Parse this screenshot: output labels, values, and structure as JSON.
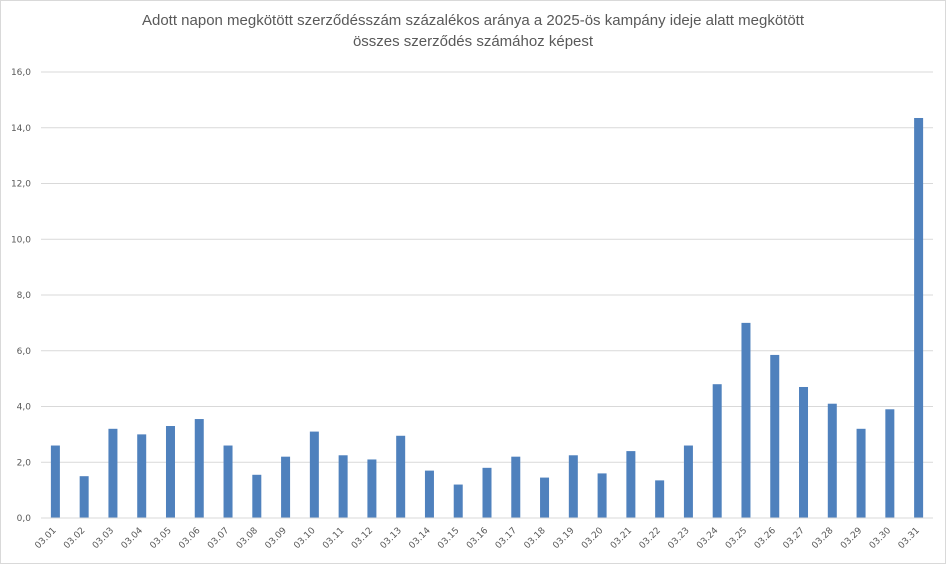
{
  "chart_data": {
    "type": "bar",
    "title_lines": [
      "Adott napon megkötött szerződésszám százalékos aránya a 2025-ös kampány ideje alatt megkötött",
      "összes szerződés számához képest"
    ],
    "xlabel": "",
    "ylabel": "",
    "categories": [
      "03.01",
      "03.02",
      "03.03",
      "03.04",
      "03.05",
      "03.06",
      "03.07",
      "03.08",
      "03.09",
      "03.10",
      "03.11",
      "03.12",
      "03.13",
      "03.14",
      "03.15",
      "03.16",
      "03.17",
      "03.18",
      "03.19",
      "03.20",
      "03.21",
      "03.22",
      "03.23",
      "03.24",
      "03.25",
      "03.26",
      "03.27",
      "03.28",
      "03.29",
      "03.30",
      "03.31"
    ],
    "values": [
      2.6,
      1.5,
      3.2,
      3.0,
      3.3,
      3.55,
      2.6,
      1.55,
      2.2,
      3.1,
      2.25,
      2.1,
      2.95,
      1.7,
      1.2,
      1.8,
      2.2,
      1.45,
      2.25,
      1.6,
      2.4,
      1.35,
      2.6,
      4.8,
      7.0,
      5.85,
      4.7,
      4.1,
      3.2,
      3.9,
      14.35
    ],
    "ylim": [
      0,
      16
    ],
    "yticks": [
      "0,0",
      "2,0",
      "4,0",
      "6,0",
      "8,0",
      "10,0",
      "12,0",
      "14,0",
      "16,0"
    ],
    "grid": true,
    "legend": "none",
    "bar_color": "#4f81bd",
    "grid_color": "#d9d9d9",
    "text_color": "#595959"
  }
}
